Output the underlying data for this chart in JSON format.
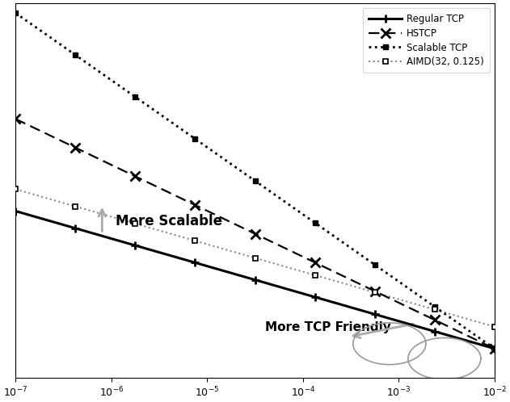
{
  "xlim": [
    1e-07,
    0.01
  ],
  "background_color": "#ffffff",
  "legend_entries": [
    "Regular TCP",
    "HSTCP",
    "Scalable TCP",
    "AIMD(32, 0.125)"
  ],
  "annotation_scalable": "More Scalable",
  "annotation_tcp": "More TCP Friendly",
  "arrow_color": "#aaaaaa",
  "regular_tcp_coeff": 1.22,
  "regular_tcp_exp": 0.5,
  "hstcp_exp": 0.835,
  "scalable_exp": 1.22,
  "aimd_coeff": 13.06,
  "aimd_exp": 0.5,
  "converge_p": 0.01,
  "markers_n": 9
}
